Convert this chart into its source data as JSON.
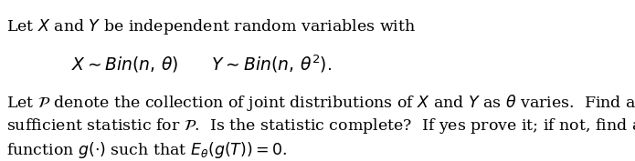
{
  "line1": "Let $X$ and $Y$ be independent random variables with",
  "line_math": "$X \\sim Bin(n, \\theta) \\qquad Y \\sim Bin(n, \\theta^2).$",
  "line2": "Let $\\mathcal{P}$ denote the collection of joint distributions of $X$ and $Y$ as $\\theta$ varies.\\;\\; Find a minimal",
  "line3": "sufficient statistic for $\\mathcal{P}$.\\;\\; Is the statistic complete?\\;\\; If yes prove it; if not, find a nontrivial",
  "line4": "function $g(\\cdot)$ such that $E_\\theta(g(T)) = 0$.",
  "bg_color": "#ffffff",
  "text_color": "#000000",
  "font_size": 12.5,
  "math_font_size": 13.5
}
